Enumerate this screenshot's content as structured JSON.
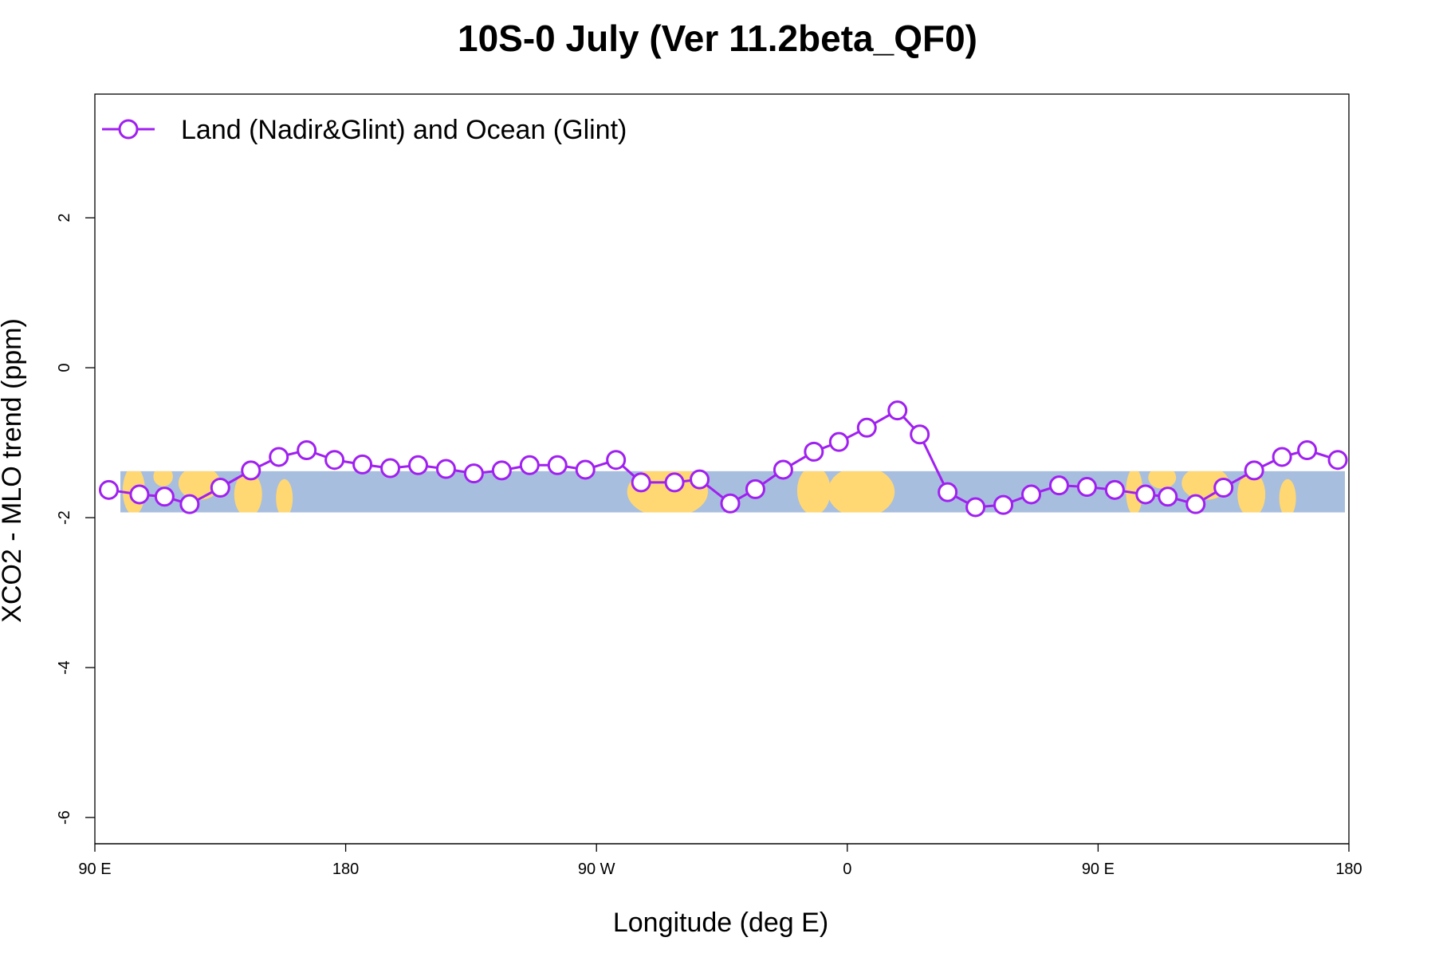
{
  "chart_data": {
    "type": "line",
    "title": "10S-0 July (Ver 11.2beta_QF0)",
    "xlabel": "Longitude (deg E)",
    "ylabel": "XCO2 - MLO trend (ppm)",
    "xlim": [
      90,
      540
    ],
    "ylim": [
      -6.35,
      3.65
    ],
    "x_ticks": [
      {
        "value": 90,
        "label": "90 E"
      },
      {
        "value": 180,
        "label": "180"
      },
      {
        "value": 270,
        "label": "90 W"
      },
      {
        "value": 360,
        "label": "0"
      },
      {
        "value": 450,
        "label": "90 E"
      },
      {
        "value": 540,
        "label": "180"
      }
    ],
    "y_ticks": [
      {
        "value": 2,
        "label": "2"
      },
      {
        "value": 0,
        "label": "0"
      },
      {
        "value": -2,
        "label": "-2"
      },
      {
        "value": -4,
        "label": "-4"
      },
      {
        "value": -6,
        "label": "-6"
      }
    ],
    "legend": {
      "position": "top-left",
      "label": "Land (Nadir&Glint) and Ocean (Glint)"
    },
    "series": [
      {
        "name": "Land (Nadir&Glint) and Ocean (Glint)",
        "color": "#a020f0",
        "marker": "open-circle",
        "x": [
          95,
          106,
          115,
          124,
          135,
          146,
          156,
          166,
          176,
          186,
          196,
          206,
          216,
          226,
          236,
          246,
          256,
          266,
          277,
          286,
          298,
          307,
          318,
          327,
          337,
          348,
          357,
          367,
          378,
          386,
          396,
          406,
          416,
          426,
          436,
          446,
          456,
          467,
          475,
          485,
          495,
          506,
          516,
          525,
          536
        ],
        "y": [
          -1.63,
          -1.69,
          -1.72,
          -1.82,
          -1.6,
          -1.37,
          -1.19,
          -1.1,
          -1.23,
          -1.29,
          -1.34,
          -1.3,
          -1.35,
          -1.41,
          -1.37,
          -1.3,
          -1.3,
          -1.36,
          -1.23,
          -1.53,
          -1.53,
          -1.49,
          -1.81,
          -1.62,
          -1.36,
          -1.12,
          -0.99,
          -0.8,
          -0.57,
          -0.89,
          -1.66,
          -1.86,
          -1.83,
          -1.69,
          -1.57,
          -1.59,
          -1.63,
          -1.69,
          -1.72,
          -1.82,
          -1.6,
          -1.37,
          -1.19,
          -1.1,
          -1.23
        ]
      }
    ],
    "background_band": {
      "y_range": [
        -1.93,
        -1.38
      ],
      "ocean_color": "#a8bede",
      "land_color": "#ffd873",
      "land_segments": [
        {
          "x": [
            100,
            108
          ],
          "y": [
            -1.38,
            -1.9
          ]
        },
        {
          "x": [
            111,
            118
          ],
          "y": [
            -1.38,
            -1.52
          ]
        },
        {
          "x": [
            120,
            135
          ],
          "y": [
            -1.38,
            -1.7
          ]
        },
        {
          "x": [
            140,
            150
          ],
          "y": [
            -1.45,
            -1.93
          ]
        },
        {
          "x": [
            155,
            161
          ],
          "y": [
            -1.55,
            -1.93
          ]
        },
        {
          "x": [
            281,
            310
          ],
          "y": [
            -1.38,
            -1.93
          ]
        },
        {
          "x": [
            342,
            354
          ],
          "y": [
            -1.38,
            -1.9
          ]
        },
        {
          "x": [
            353,
            377
          ],
          "y": [
            -1.38,
            -1.93
          ]
        },
        {
          "x": [
            460,
            466
          ],
          "y": [
            -1.4,
            -1.9
          ]
        },
        {
          "x": [
            468,
            478
          ],
          "y": [
            -1.38,
            -1.55
          ]
        },
        {
          "x": [
            480,
            497
          ],
          "y": [
            -1.38,
            -1.7
          ]
        },
        {
          "x": [
            500,
            510
          ],
          "y": [
            -1.45,
            -1.93
          ]
        },
        {
          "x": [
            515,
            521
          ],
          "y": [
            -1.55,
            -1.93
          ]
        }
      ]
    }
  }
}
